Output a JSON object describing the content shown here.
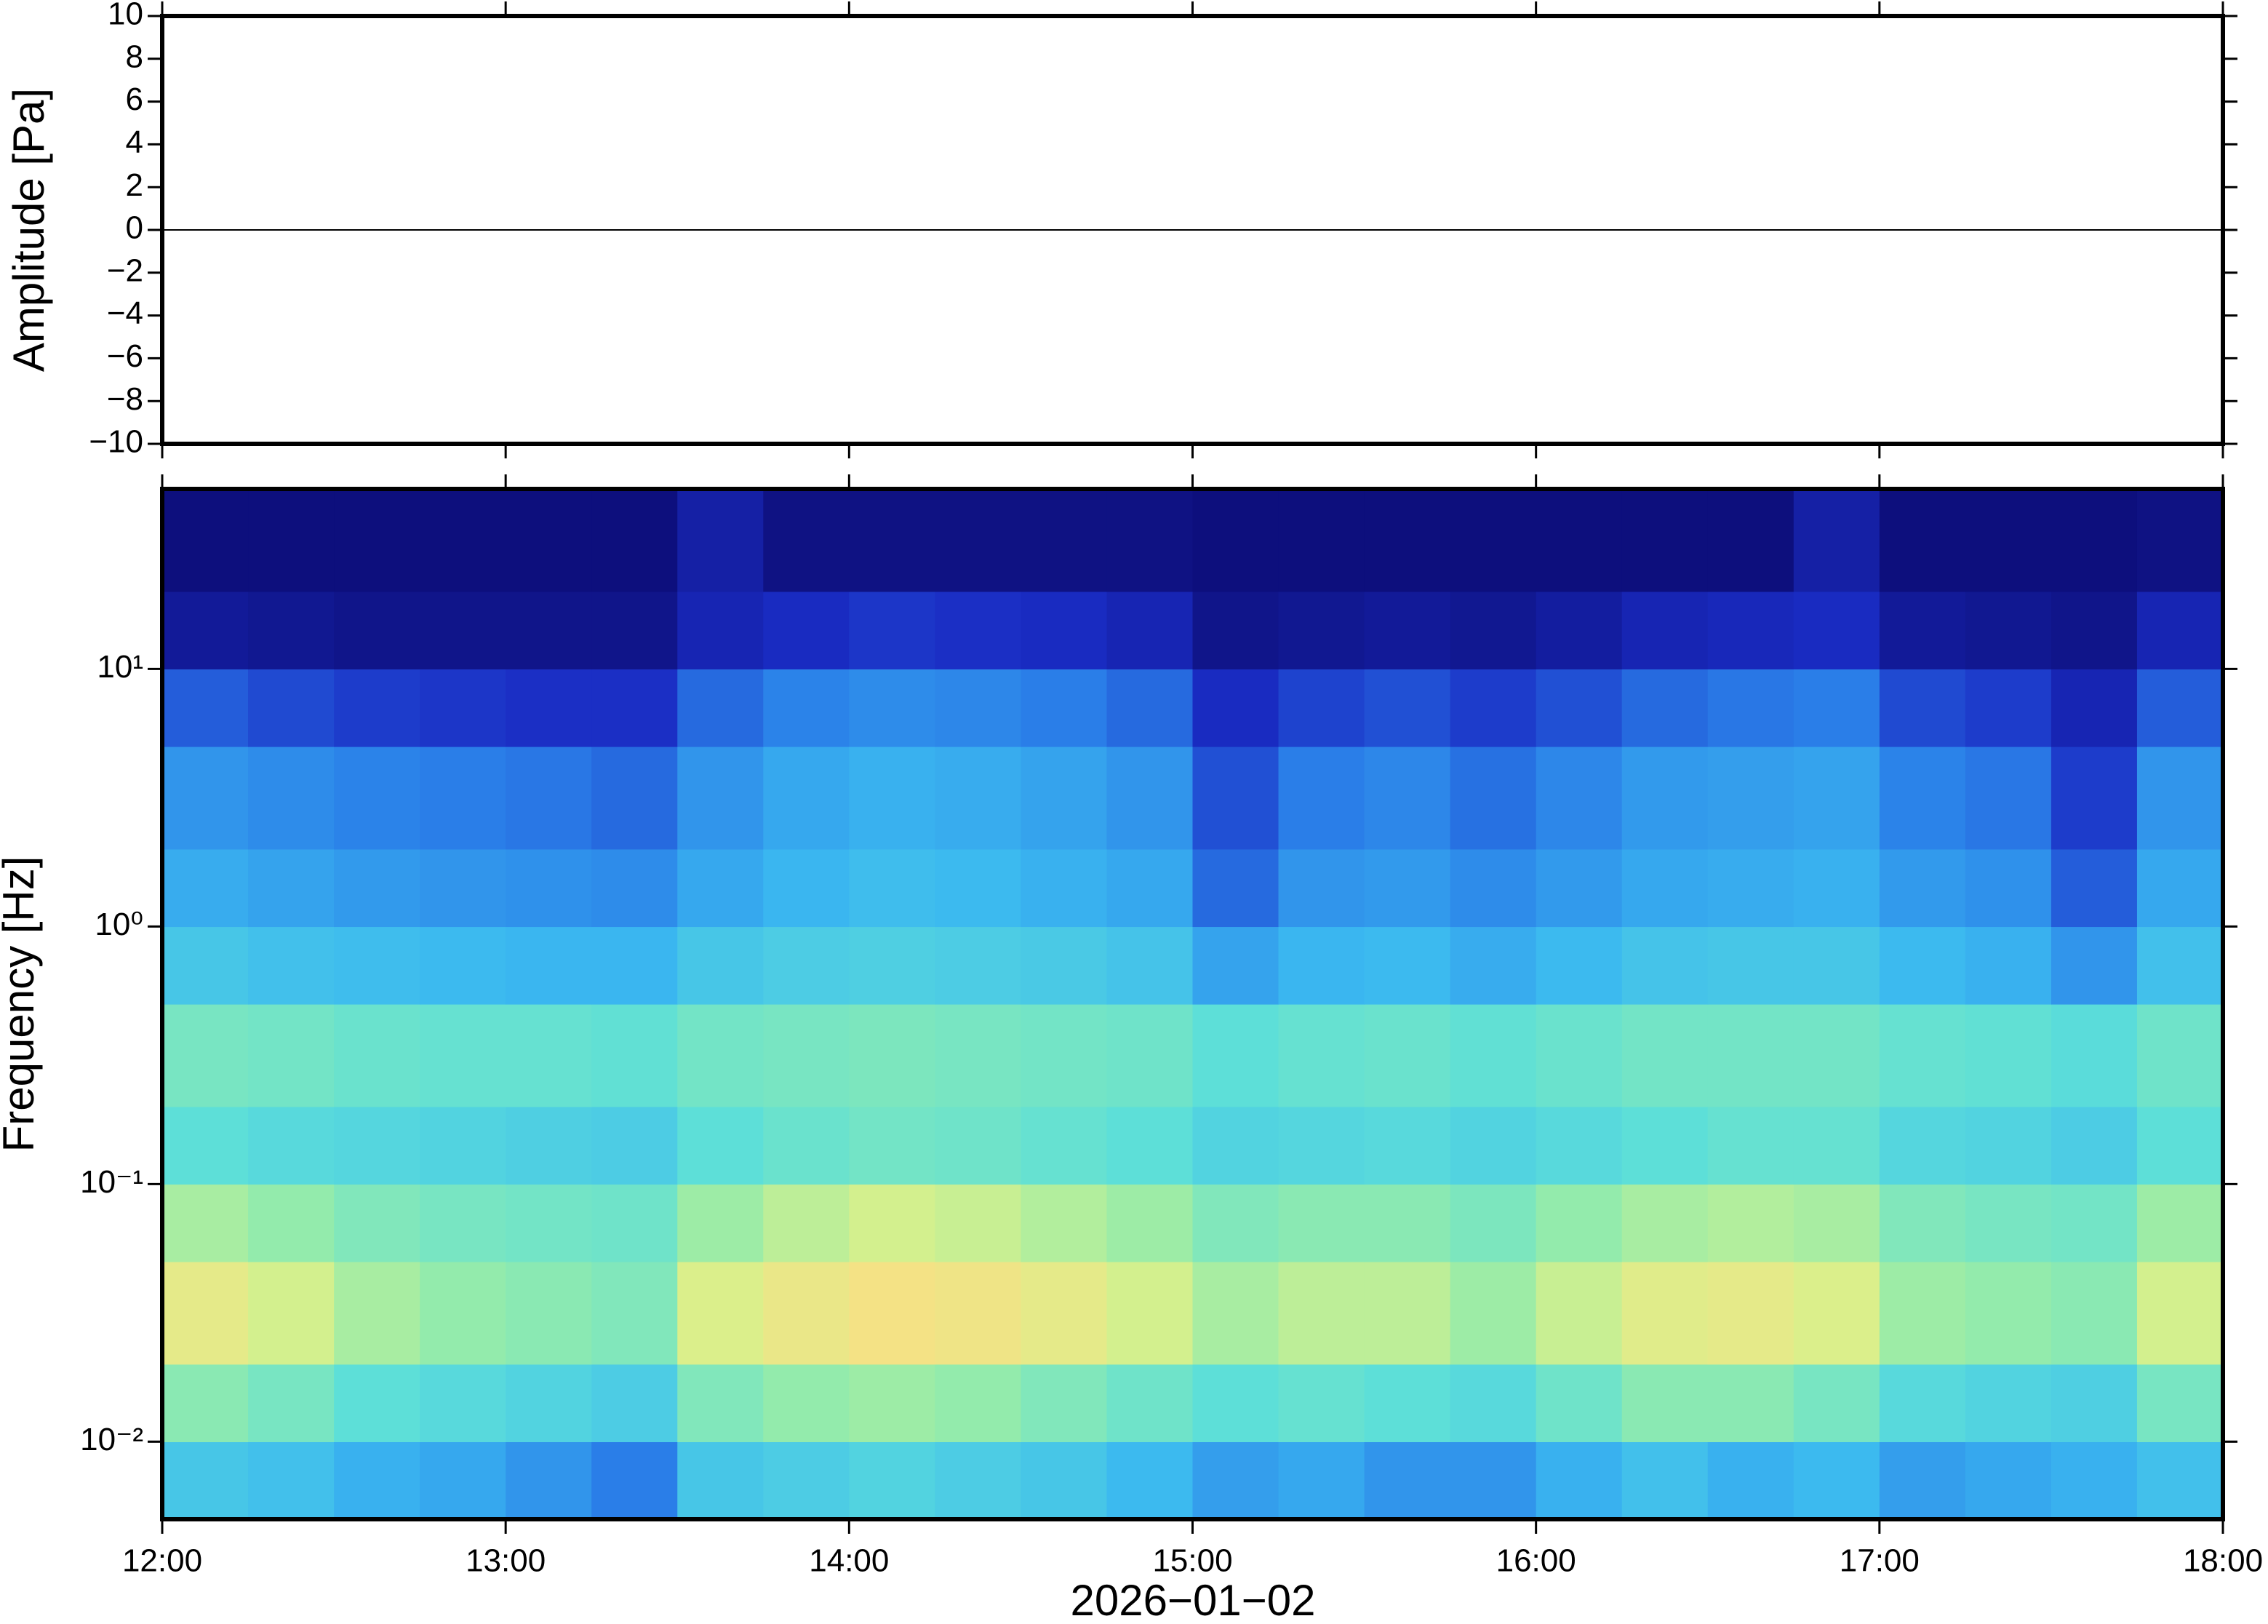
{
  "chart_data": [
    {
      "type": "line",
      "ylabel": "Amplitude [Pa]",
      "x": [
        "12:00",
        "12:30",
        "13:00",
        "13:30",
        "14:00",
        "14:30",
        "15:00",
        "15:30",
        "16:00",
        "16:30",
        "17:00",
        "17:30",
        "18:00"
      ],
      "values": [
        0,
        0,
        0,
        0,
        0,
        0,
        0,
        0,
        0,
        0,
        0,
        0,
        0
      ],
      "color": "#000000",
      "xlim": [
        "12:00",
        "18:00"
      ],
      "ylim": [
        -10,
        10
      ],
      "yticks": [
        {
          "value": -10,
          "label": "−10"
        },
        {
          "value": -8,
          "label": "−8"
        },
        {
          "value": -6,
          "label": "−6"
        },
        {
          "value": -4,
          "label": "−4"
        },
        {
          "value": -2,
          "label": "−2"
        },
        0,
        2,
        4,
        6,
        8,
        10
      ]
    },
    {
      "type": "heatmap",
      "ylabel": "Frequency [Hz]",
      "xlabel": "2026−01−02",
      "xlim": [
        "12:00",
        "18:00"
      ],
      "xticks": [
        "12:00",
        "13:00",
        "14:00",
        "15:00",
        "16:00",
        "17:00",
        "18:00"
      ],
      "log_y": true,
      "ylim": [
        0.005,
        50
      ],
      "yticks": [
        {
          "value": 0.01,
          "label": "10⁻²"
        },
        {
          "value": 0.1,
          "label": "10⁻¹"
        },
        {
          "value": 1,
          "label": "10⁰"
        },
        {
          "value": 10,
          "label": "10¹"
        }
      ],
      "time_edges": [
        "12:00",
        "12:15",
        "12:30",
        "12:45",
        "13:00",
        "13:15",
        "13:30",
        "13:45",
        "14:00",
        "14:15",
        "14:30",
        "14:45",
        "15:00",
        "15:15",
        "15:30",
        "15:45",
        "16:00",
        "16:15",
        "16:30",
        "16:45",
        "17:00",
        "17:15",
        "17:30",
        "17:45",
        "18:00"
      ],
      "freq_edges": [
        0.005,
        0.01,
        0.02,
        0.05,
        0.1,
        0.2,
        0.5,
        1,
        2,
        5,
        10,
        20,
        50
      ],
      "zlim": [
        0,
        1
      ],
      "colormap": [
        "#0b0a6f",
        "#1a2cc4",
        "#2a7ee8",
        "#3bb8f0",
        "#5ddfd8",
        "#95ecaa",
        "#d8f08c",
        "#f8e084",
        "#f8b866"
      ],
      "z": [
        [
          0.42,
          0.4,
          0.36,
          0.34,
          0.3,
          0.25,
          0.42,
          0.44,
          0.46,
          0.44,
          0.42,
          0.38,
          0.32,
          0.34,
          0.3,
          0.3,
          0.36,
          0.4,
          0.36,
          0.38,
          0.32,
          0.34,
          0.36,
          0.4
        ],
        [
          0.6,
          0.56,
          0.5,
          0.48,
          0.46,
          0.44,
          0.58,
          0.62,
          0.64,
          0.62,
          0.58,
          0.54,
          0.5,
          0.52,
          0.5,
          0.48,
          0.54,
          0.6,
          0.6,
          0.56,
          0.48,
          0.46,
          0.45,
          0.56
        ],
        [
          0.8,
          0.74,
          0.66,
          0.62,
          0.6,
          0.58,
          0.76,
          0.82,
          0.86,
          0.84,
          0.8,
          0.74,
          0.66,
          0.7,
          0.7,
          0.64,
          0.72,
          0.78,
          0.8,
          0.76,
          0.64,
          0.62,
          0.6,
          0.74
        ],
        [
          0.66,
          0.62,
          0.58,
          0.56,
          0.55,
          0.54,
          0.64,
          0.7,
          0.74,
          0.72,
          0.68,
          0.64,
          0.58,
          0.6,
          0.6,
          0.57,
          0.62,
          0.66,
          0.68,
          0.66,
          0.58,
          0.56,
          0.55,
          0.64
        ],
        [
          0.5,
          0.48,
          0.47,
          0.46,
          0.45,
          0.44,
          0.5,
          0.53,
          0.55,
          0.54,
          0.52,
          0.5,
          0.46,
          0.47,
          0.48,
          0.46,
          0.48,
          0.5,
          0.52,
          0.52,
          0.47,
          0.46,
          0.44,
          0.5
        ],
        [
          0.56,
          0.55,
          0.53,
          0.52,
          0.52,
          0.51,
          0.55,
          0.56,
          0.57,
          0.56,
          0.55,
          0.54,
          0.5,
          0.52,
          0.53,
          0.51,
          0.53,
          0.55,
          0.55,
          0.55,
          0.52,
          0.51,
          0.49,
          0.54
        ],
        [
          0.42,
          0.4,
          0.39,
          0.38,
          0.37,
          0.37,
          0.42,
          0.44,
          0.45,
          0.44,
          0.43,
          0.41,
          0.33,
          0.37,
          0.38,
          0.35,
          0.38,
          0.41,
          0.42,
          0.42,
          0.38,
          0.36,
          0.3,
          0.4
        ],
        [
          0.35,
          0.33,
          0.31,
          0.3,
          0.29,
          0.28,
          0.34,
          0.37,
          0.39,
          0.38,
          0.36,
          0.34,
          0.22,
          0.3,
          0.31,
          0.28,
          0.31,
          0.34,
          0.35,
          0.36,
          0.31,
          0.29,
          0.2,
          0.34
        ],
        [
          0.3,
          0.28,
          0.26,
          0.25,
          0.24,
          0.22,
          0.3,
          0.34,
          0.36,
          0.35,
          0.33,
          0.3,
          0.18,
          0.25,
          0.27,
          0.23,
          0.27,
          0.31,
          0.32,
          0.33,
          0.26,
          0.24,
          0.15,
          0.3
        ],
        [
          0.2,
          0.17,
          0.15,
          0.14,
          0.13,
          0.13,
          0.22,
          0.26,
          0.28,
          0.27,
          0.25,
          0.22,
          0.12,
          0.16,
          0.18,
          0.15,
          0.18,
          0.22,
          0.24,
          0.25,
          0.17,
          0.15,
          0.1,
          0.2
        ],
        [
          0.06,
          0.05,
          0.04,
          0.04,
          0.04,
          0.04,
          0.1,
          0.12,
          0.14,
          0.13,
          0.12,
          0.1,
          0.04,
          0.05,
          0.06,
          0.05,
          0.07,
          0.1,
          0.11,
          0.12,
          0.06,
          0.05,
          0.04,
          0.1
        ],
        [
          0.02,
          0.02,
          0.02,
          0.02,
          0.02,
          0.02,
          0.08,
          0.03,
          0.03,
          0.03,
          0.03,
          0.03,
          0.02,
          0.02,
          0.02,
          0.02,
          0.02,
          0.02,
          0.02,
          0.08,
          0.02,
          0.02,
          0.02,
          0.03
        ]
      ]
    }
  ]
}
